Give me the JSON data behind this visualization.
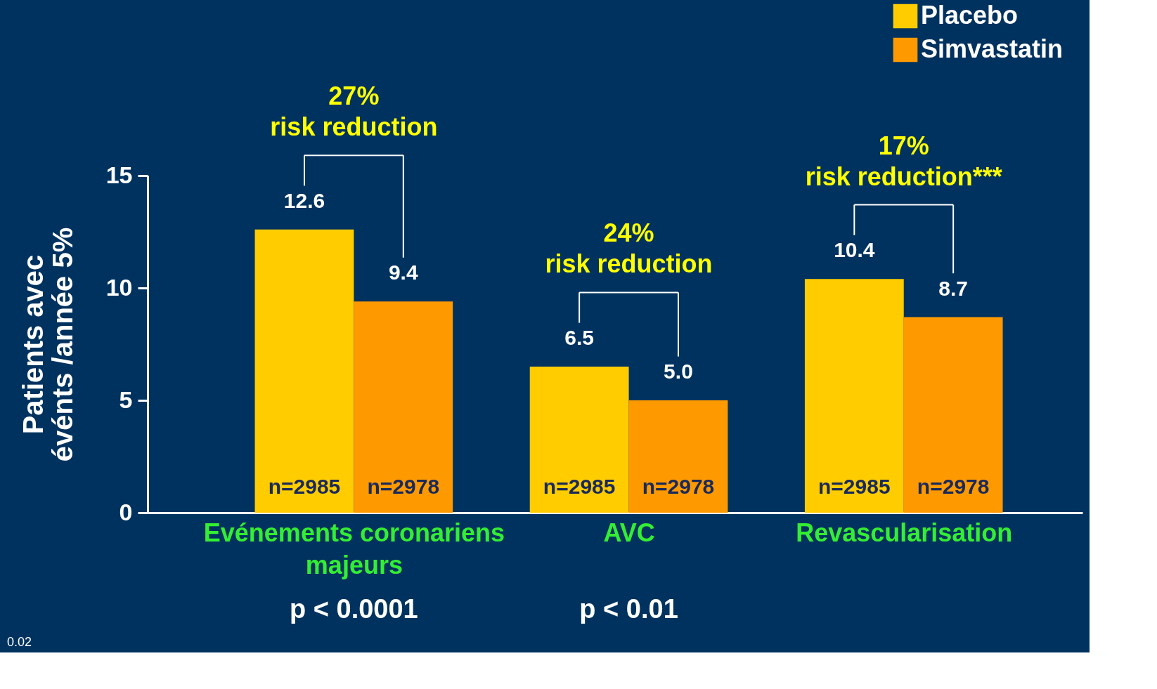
{
  "chart_data": {
    "type": "bar",
    "categories": [
      "Evénements coronariens\nmajeurs",
      "AVC",
      "Revascularisation"
    ],
    "series": [
      {
        "name": "Placebo",
        "color": "#ffcc00",
        "values": [
          12.6,
          6.5,
          10.4
        ],
        "value_labels": [
          "12.6",
          "6.5",
          "10.4"
        ]
      },
      {
        "name": "Simvastatin",
        "color": "#ff9900",
        "values": [
          9.4,
          5.0,
          8.7
        ],
        "value_labels": [
          "9.4",
          "5.0",
          "8.7"
        ]
      }
    ],
    "ylabel": "Patients avec\névénts /année 5%",
    "ylim": [
      0,
      15
    ],
    "yticks": [
      0,
      5,
      10,
      15
    ],
    "legend": "top right",
    "grid": false,
    "annotations": [
      "27%\nrisk reduction",
      "24%\nrisk reduction",
      "17%\nrisk reduction***",
      "p < 0.0001",
      "p < 0.01",
      {
        "text": "n=2985",
        "x": "Evénements coronariens\nmajeurs",
        "y": 0
      },
      {
        "text": "n=2978",
        "x": "Evénements coronariens\nmajeurs",
        "y": 0
      },
      {
        "text": "n=2985",
        "x": "AVC",
        "y": 0
      },
      {
        "text": "n=2978",
        "x": "AVC",
        "y": 0
      },
      {
        "text": "n=2985",
        "x": "Revascularisation",
        "y": 0
      },
      {
        "text": "n=2978",
        "x": "Revascularisation",
        "y": 0
      },
      "0.02"
    ]
  }
}
